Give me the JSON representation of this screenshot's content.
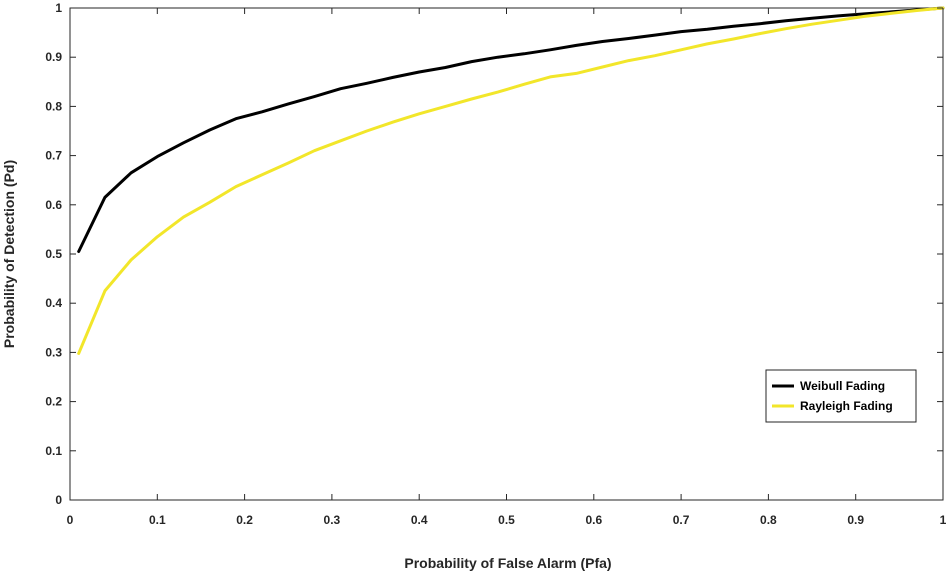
{
  "chart_data": {
    "type": "line",
    "title": "",
    "xlabel": "Probability of False Alarm (Pfa)",
    "ylabel": "Probability of Detection (Pd)",
    "xlim": [
      0,
      1
    ],
    "ylim": [
      0,
      1
    ],
    "xticks": [
      "0",
      "0.1",
      "0.2",
      "0.3",
      "0.4",
      "0.5",
      "0.6",
      "0.7",
      "0.8",
      "0.9",
      "1"
    ],
    "yticks": [
      "0",
      "0.1",
      "0.2",
      "0.3",
      "0.4",
      "0.5",
      "0.6",
      "0.7",
      "0.8",
      "0.9",
      "1"
    ],
    "grid": false,
    "legend_position": "bottom-right",
    "series": [
      {
        "name": "Weibull Fading",
        "color": "#000000",
        "x": [
          0.01,
          0.04,
          0.07,
          0.1,
          0.13,
          0.16,
          0.19,
          0.22,
          0.25,
          0.28,
          0.31,
          0.34,
          0.37,
          0.4,
          0.43,
          0.46,
          0.49,
          0.52,
          0.55,
          0.58,
          0.61,
          0.64,
          0.67,
          0.7,
          0.73,
          0.76,
          0.79,
          0.82,
          0.85,
          0.88,
          0.91,
          0.94,
          0.97,
          1.0
        ],
        "y": [
          0.505,
          0.615,
          0.665,
          0.698,
          0.726,
          0.752,
          0.775,
          0.789,
          0.805,
          0.82,
          0.836,
          0.847,
          0.859,
          0.87,
          0.879,
          0.891,
          0.9,
          0.907,
          0.915,
          0.924,
          0.932,
          0.938,
          0.945,
          0.952,
          0.957,
          0.963,
          0.968,
          0.974,
          0.979,
          0.984,
          0.988,
          0.992,
          0.996,
          1.0
        ]
      },
      {
        "name": "Rayleigh Fading",
        "color": "#f2e62a",
        "x": [
          0.01,
          0.04,
          0.07,
          0.1,
          0.13,
          0.16,
          0.19,
          0.22,
          0.25,
          0.28,
          0.31,
          0.34,
          0.37,
          0.4,
          0.43,
          0.46,
          0.49,
          0.52,
          0.55,
          0.58,
          0.61,
          0.64,
          0.67,
          0.7,
          0.73,
          0.76,
          0.79,
          0.82,
          0.85,
          0.88,
          0.91,
          0.94,
          0.97,
          1.0
        ],
        "y": [
          0.298,
          0.425,
          0.488,
          0.535,
          0.575,
          0.605,
          0.637,
          0.661,
          0.685,
          0.71,
          0.73,
          0.75,
          0.768,
          0.785,
          0.8,
          0.815,
          0.829,
          0.845,
          0.86,
          0.867,
          0.88,
          0.893,
          0.903,
          0.915,
          0.927,
          0.937,
          0.948,
          0.958,
          0.967,
          0.975,
          0.983,
          0.989,
          0.995,
          1.0
        ]
      }
    ]
  }
}
